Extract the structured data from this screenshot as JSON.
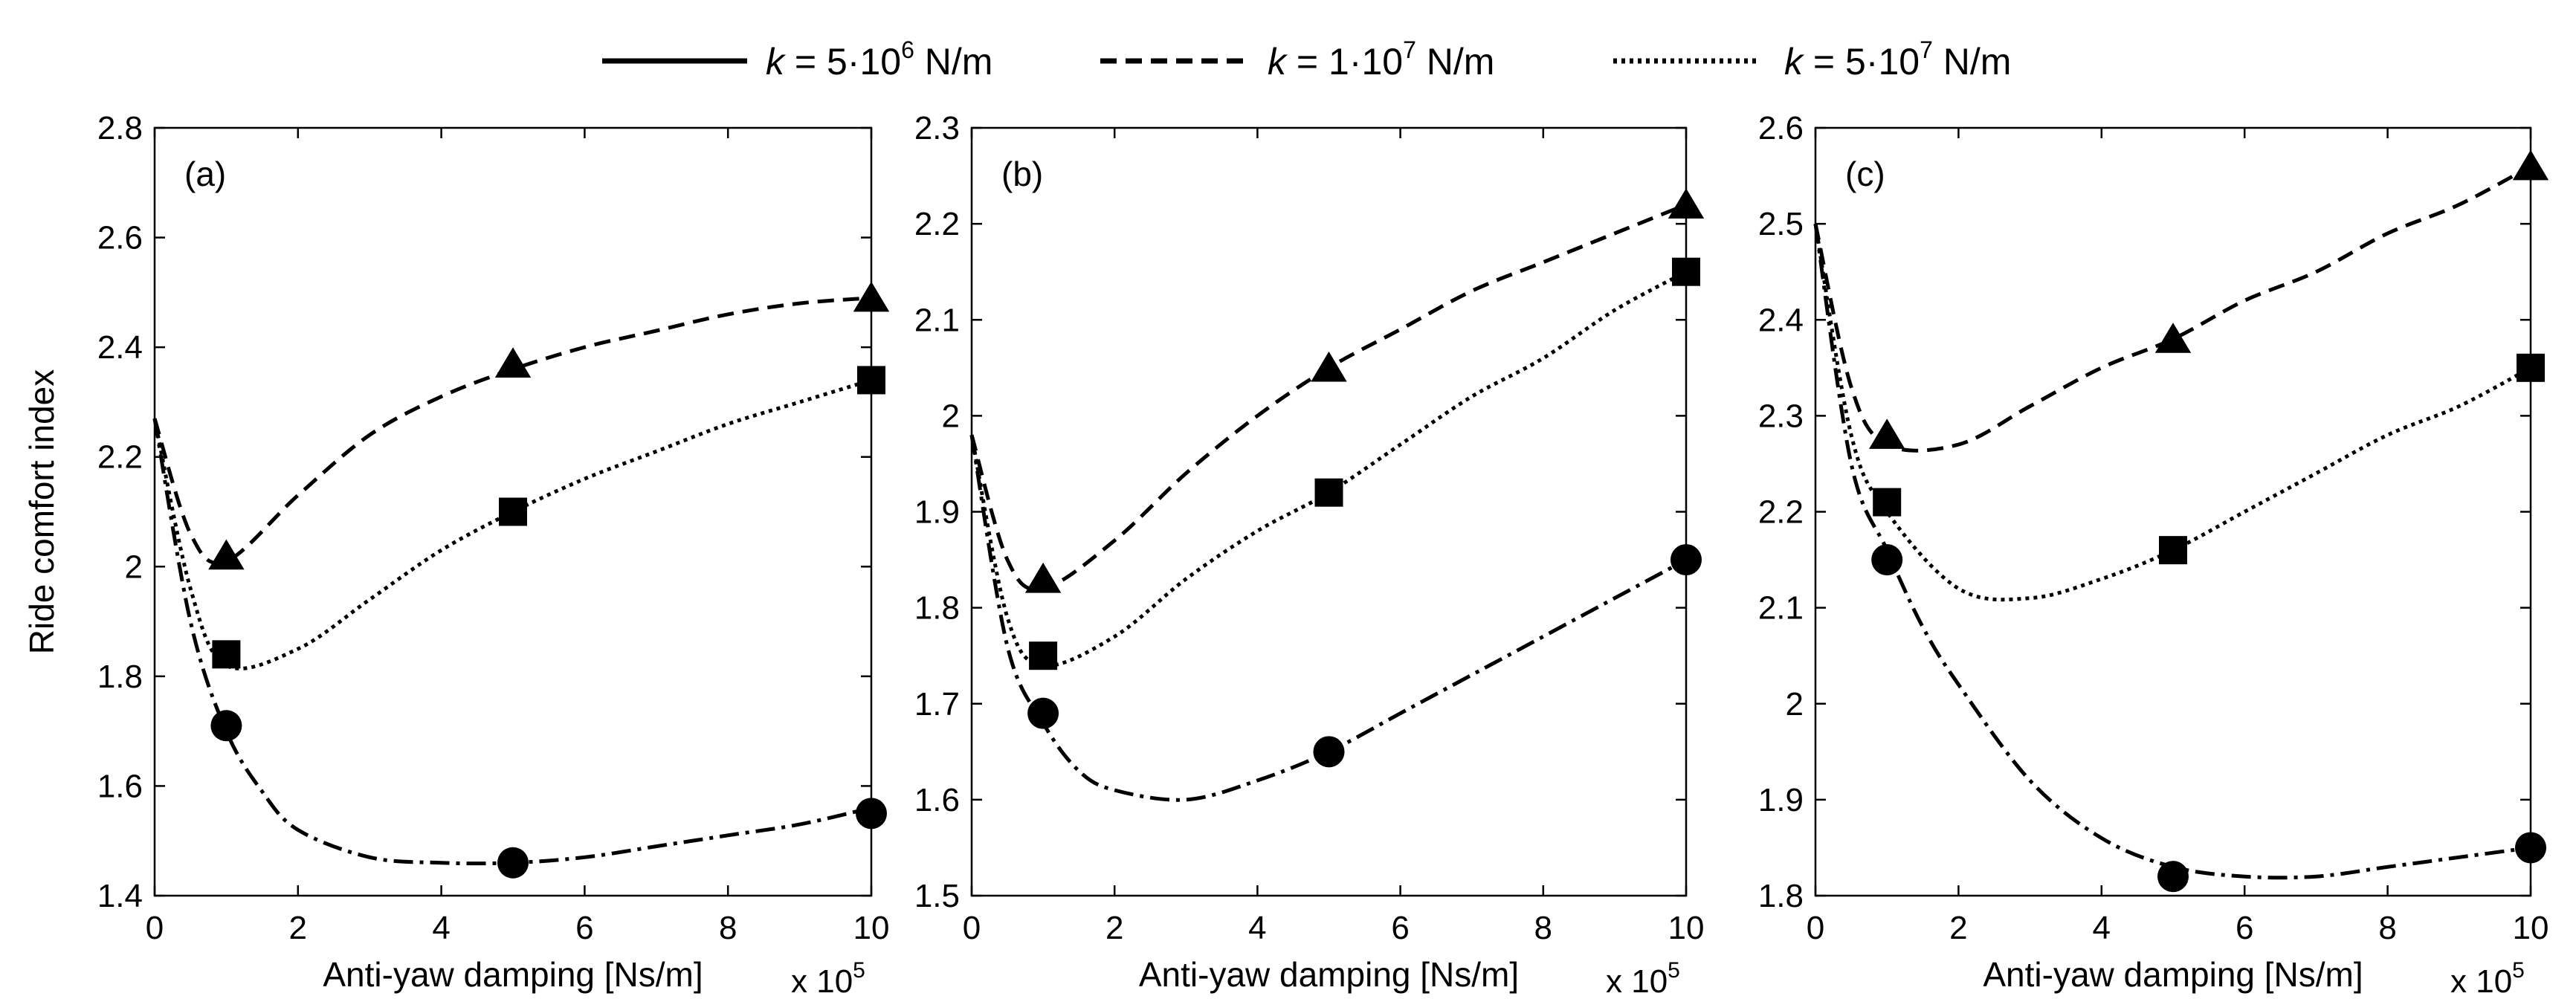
{
  "legend": {
    "entries": [
      {
        "prefix": "k",
        "eq": " = 5·10",
        "exp": "6",
        "unit": " N/m",
        "style": "solid"
      },
      {
        "prefix": "k",
        "eq": " = 1·10",
        "exp": "7",
        "unit": " N/m",
        "style": "dashed"
      },
      {
        "prefix": "k",
        "eq": " = 5·10",
        "exp": "7",
        "unit": " N/m",
        "style": "dotted"
      }
    ]
  },
  "chart_data": [
    {
      "type": "line",
      "panel_label": "(a)",
      "xlabel": "Anti-yaw damping [Ns/m]",
      "x_multiplier": "x 10",
      "x_multiplier_exp": "5",
      "ylabel": "Ride comfort index",
      "xlim": [
        0,
        10
      ],
      "ylim": [
        1.4,
        2.8
      ],
      "xticks": [
        0,
        2,
        4,
        6,
        8,
        10
      ],
      "yticks": [
        1.4,
        1.6,
        1.8,
        2.0,
        2.2,
        2.4,
        2.6,
        2.8
      ],
      "ytick_labels": [
        "1.4",
        "1.6",
        "1.8",
        "2",
        "2.2",
        "2.4",
        "2.6",
        "2.8"
      ],
      "series": [
        {
          "name": "triangle (dashed)",
          "marker": "triangle",
          "line": "dashed",
          "curve_x": [
            0,
            0.5,
            1,
            2,
            3,
            4,
            5,
            6,
            7,
            8,
            9,
            10
          ],
          "curve_y": [
            2.27,
            2.06,
            2.01,
            2.13,
            2.24,
            2.31,
            2.36,
            2.4,
            2.43,
            2.46,
            2.48,
            2.49
          ],
          "marker_x": [
            1,
            5,
            10
          ],
          "marker_y": [
            2.02,
            2.37,
            2.49
          ]
        },
        {
          "name": "square (dotted)",
          "marker": "square",
          "line": "dotted",
          "curve_x": [
            0,
            0.5,
            1,
            2,
            3,
            4,
            5,
            6,
            7,
            8,
            9,
            10
          ],
          "curve_y": [
            2.27,
            1.96,
            1.82,
            1.85,
            1.94,
            2.03,
            2.1,
            2.16,
            2.21,
            2.26,
            2.3,
            2.34
          ],
          "marker_x": [
            1,
            5,
            10
          ],
          "marker_y": [
            1.84,
            2.1,
            2.34
          ]
        },
        {
          "name": "circle (dash-dot)",
          "marker": "circle",
          "line": "dashdot",
          "curve_x": [
            0,
            0.5,
            1,
            1.5,
            2,
            3,
            4,
            5,
            6,
            7,
            8,
            9,
            10
          ],
          "curve_y": [
            2.27,
            1.9,
            1.7,
            1.59,
            1.52,
            1.47,
            1.46,
            1.46,
            1.47,
            1.49,
            1.51,
            1.53,
            1.56
          ],
          "marker_x": [
            1,
            5,
            10
          ],
          "marker_y": [
            1.71,
            1.46,
            1.55
          ]
        }
      ]
    },
    {
      "type": "line",
      "panel_label": "(b)",
      "xlabel": "Anti-yaw damping [Ns/m]",
      "x_multiplier": "x 10",
      "x_multiplier_exp": "5",
      "ylabel": "",
      "xlim": [
        0,
        10
      ],
      "ylim": [
        1.5,
        2.3
      ],
      "xticks": [
        0,
        2,
        4,
        6,
        8,
        10
      ],
      "yticks": [
        1.5,
        1.6,
        1.7,
        1.8,
        1.9,
        2.0,
        2.1,
        2.2,
        2.3
      ],
      "ytick_labels": [
        "1.5",
        "1.6",
        "1.7",
        "1.8",
        "1.9",
        "2",
        "2.1",
        "2.2",
        "2.3"
      ],
      "series": [
        {
          "name": "triangle (dashed)",
          "marker": "triangle",
          "line": "dashed",
          "curve_x": [
            0,
            0.5,
            1,
            2,
            3,
            4,
            5,
            6,
            7,
            8,
            9,
            10
          ],
          "curve_y": [
            1.98,
            1.85,
            1.82,
            1.87,
            1.94,
            2.0,
            2.05,
            2.09,
            2.13,
            2.16,
            2.19,
            2.22
          ],
          "marker_x": [
            1,
            5,
            10
          ],
          "marker_y": [
            1.83,
            2.05,
            2.22
          ]
        },
        {
          "name": "square (dotted)",
          "marker": "square",
          "line": "dotted",
          "curve_x": [
            0,
            0.5,
            1,
            2,
            3,
            4,
            5,
            6,
            7,
            8,
            9,
            10
          ],
          "curve_y": [
            1.98,
            1.79,
            1.74,
            1.77,
            1.83,
            1.88,
            1.92,
            1.97,
            2.02,
            2.06,
            2.11,
            2.15
          ],
          "marker_x": [
            1,
            5,
            10
          ],
          "marker_y": [
            1.75,
            1.92,
            2.15
          ]
        },
        {
          "name": "circle (dash-dot)",
          "marker": "circle",
          "line": "dashdot",
          "curve_x": [
            0,
            0.5,
            1,
            1.5,
            2,
            3,
            4,
            5,
            6,
            7,
            8,
            9,
            10
          ],
          "curve_y": [
            1.98,
            1.76,
            1.68,
            1.63,
            1.61,
            1.6,
            1.62,
            1.65,
            1.69,
            1.73,
            1.77,
            1.81,
            1.85
          ],
          "marker_x": [
            1,
            5,
            10
          ],
          "marker_y": [
            1.69,
            1.65,
            1.85
          ]
        }
      ]
    },
    {
      "type": "line",
      "panel_label": "(c)",
      "xlabel": "Anti-yaw damping [Ns/m]",
      "x_multiplier": "x 10",
      "x_multiplier_exp": "5",
      "ylabel": "",
      "xlim": [
        0,
        10
      ],
      "ylim": [
        1.8,
        2.6
      ],
      "xticks": [
        0,
        2,
        4,
        6,
        8,
        10
      ],
      "yticks": [
        1.8,
        1.9,
        2.0,
        2.1,
        2.2,
        2.3,
        2.4,
        2.5,
        2.6
      ],
      "ytick_labels": [
        "1.8",
        "1.9",
        "2",
        "2.1",
        "2.2",
        "2.3",
        "2.4",
        "2.5",
        "2.6"
      ],
      "series": [
        {
          "name": "triangle (dashed)",
          "marker": "triangle",
          "line": "dashed",
          "curve_x": [
            0,
            0.5,
            1,
            2,
            3,
            4,
            5,
            6,
            7,
            8,
            9,
            10
          ],
          "curve_y": [
            2.5,
            2.33,
            2.27,
            2.27,
            2.31,
            2.35,
            2.38,
            2.42,
            2.45,
            2.49,
            2.52,
            2.56
          ],
          "marker_x": [
            1,
            5,
            10
          ],
          "marker_y": [
            2.28,
            2.38,
            2.56
          ]
        },
        {
          "name": "square (dotted)",
          "marker": "square",
          "line": "dotted",
          "curve_x": [
            0,
            0.5,
            1,
            2,
            3,
            4,
            5,
            6,
            7,
            8,
            9,
            10
          ],
          "curve_y": [
            2.5,
            2.28,
            2.2,
            2.12,
            2.11,
            2.13,
            2.16,
            2.2,
            2.24,
            2.28,
            2.31,
            2.35
          ],
          "marker_x": [
            1,
            5,
            10
          ],
          "marker_y": [
            2.21,
            2.16,
            2.35
          ]
        },
        {
          "name": "circle (dash-dot)",
          "marker": "circle",
          "line": "dashdot",
          "curve_x": [
            0,
            0.5,
            1,
            1.5,
            2,
            3,
            4,
            5,
            6,
            7,
            8,
            9,
            10
          ],
          "curve_y": [
            2.5,
            2.25,
            2.16,
            2.08,
            2.02,
            1.92,
            1.86,
            1.83,
            1.82,
            1.82,
            1.83,
            1.84,
            1.85
          ],
          "marker_x": [
            1,
            5,
            10
          ],
          "marker_y": [
            2.15,
            1.82,
            1.85
          ]
        }
      ]
    }
  ]
}
